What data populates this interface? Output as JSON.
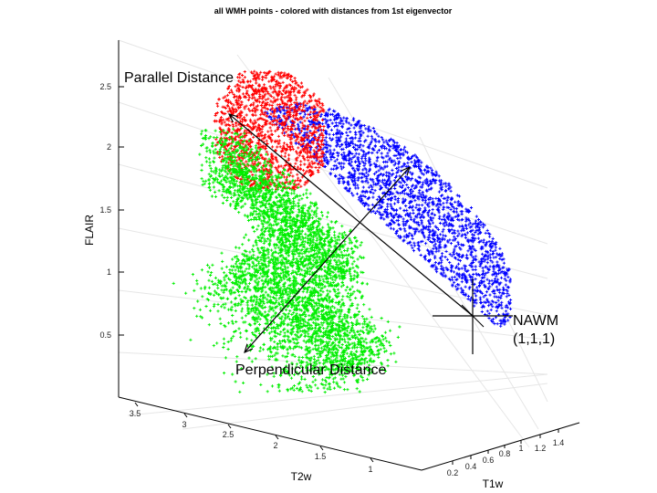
{
  "chart_data": {
    "type": "scatter",
    "dimensions": 3,
    "title": "all WMH points - colored with distances from 1st eigenvector",
    "xlabel": "T1w",
    "ylabel": "T2w",
    "zlabel": "FLAIR",
    "x_ticks": [
      "0.2",
      "0.4",
      "0.6",
      "0.8",
      "1",
      "1.2",
      "1.4"
    ],
    "y_ticks": [
      "1",
      "1.5",
      "2",
      "2.5",
      "3",
      "3.5"
    ],
    "z_ticks": [
      "0.5",
      "1",
      "1.5",
      "2",
      "2.5"
    ],
    "grid": true,
    "marker": "+",
    "series": [
      {
        "color": "#0000ff"
      },
      {
        "color": "#ff0000"
      },
      {
        "color": "#00ee00"
      }
    ],
    "annotations": {
      "parallel": "Parallel Distance",
      "perpendicular": "Perpendicular Distance",
      "nawm_line1": "NAWM",
      "nawm_line2": "(1,1,1)"
    }
  }
}
